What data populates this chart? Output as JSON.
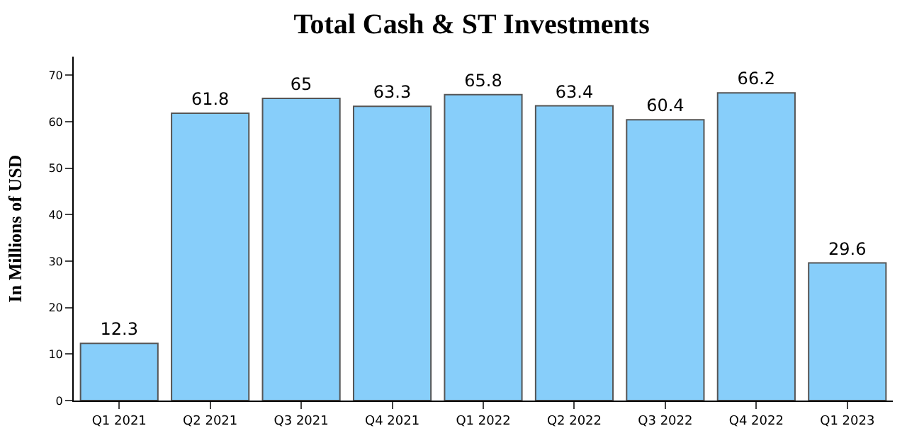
{
  "chart_data": {
    "type": "bar",
    "title": "Total Cash & ST Investments",
    "ylabel": "In Millions of USD",
    "categories": [
      "Q1 2021",
      "Q2 2021",
      "Q3 2021",
      "Q4 2021",
      "Q1 2022",
      "Q2 2022",
      "Q3 2022",
      "Q4 2022",
      "Q1 2023"
    ],
    "values": [
      12.3,
      61.8,
      65,
      63.3,
      65.8,
      63.4,
      60.4,
      66.2,
      29.6
    ],
    "color": "#87cefa",
    "ylim": [
      0,
      74
    ],
    "yticks": [
      0,
      10,
      20,
      30,
      40,
      50,
      60,
      70
    ],
    "data_labels": true
  }
}
